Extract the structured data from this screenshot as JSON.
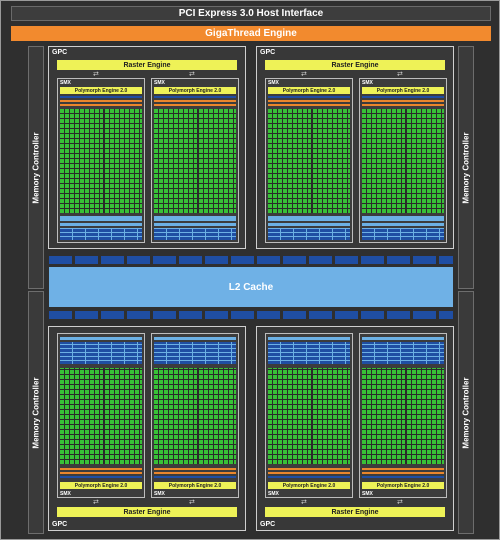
{
  "pcie_label": "PCI Express 3.0 Host Interface",
  "gigathread_label": "GigaThread Engine",
  "memory_controller_label": "Memory Controller",
  "l2_label": "L2 Cache",
  "gpc_label": "GPC",
  "raster_label": "Raster Engine",
  "smx_label": "SMX",
  "polymorph_label": "Polymorph Engine 2.0",
  "arrows_glyph": "⇄",
  "colors": {
    "chip_background": "#2f2f2f",
    "gigathread": "#f28a2e",
    "raster_polymorph": "#eef257",
    "cuda_cores": "#38c137",
    "l2_cache": "#6fb1e6",
    "dark_blue_units": "#1f4ea3",
    "light_blue_units": "#6cb0e4",
    "orange_units": "#e9862c"
  }
}
